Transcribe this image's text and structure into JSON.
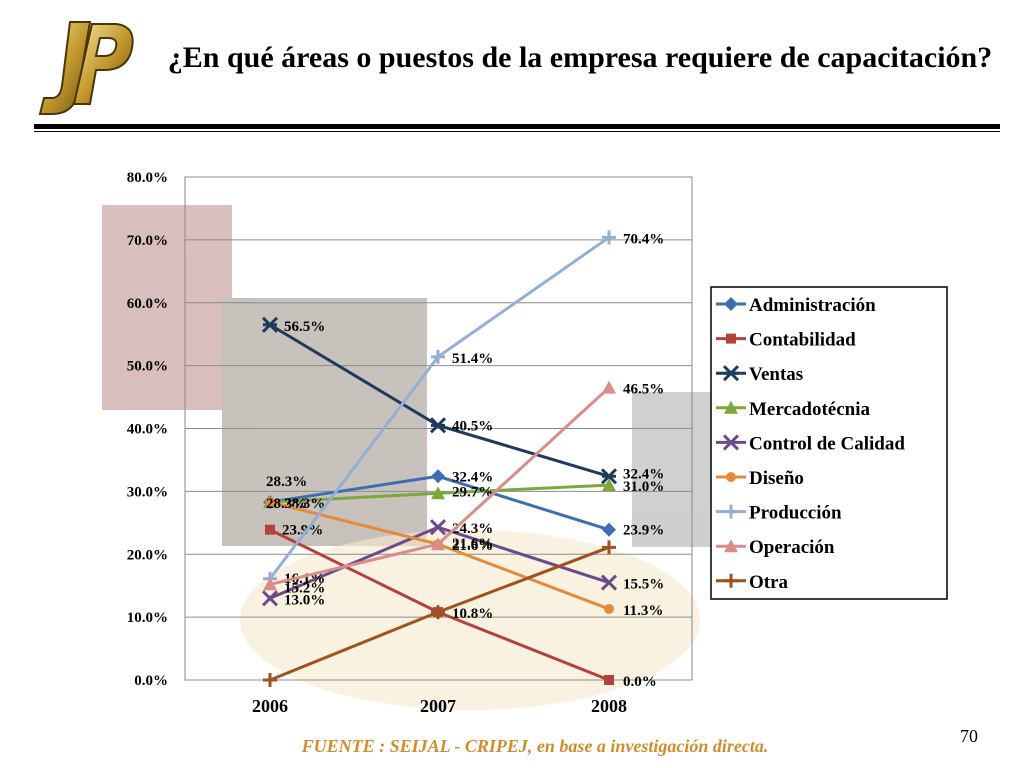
{
  "slide": {
    "title": "¿En qué áreas o puestos de la empresa requiere de capacitación?",
    "source": "FUENTE : SEIJAL - CRIPEJ, en base a investigación directa.",
    "page_number": "70"
  },
  "colors": {
    "source_text": "#d08d2b",
    "logo_gold": "#c69a2e"
  },
  "chart_data": {
    "type": "line",
    "title": "",
    "xlabel": "",
    "ylabel": "",
    "x": [
      "2006",
      "2007",
      "2008"
    ],
    "ylim": [
      0,
      80
    ],
    "yticks": [
      "0.0%",
      "10.0%",
      "20.0%",
      "30.0%",
      "40.0%",
      "50.0%",
      "60.0%",
      "70.0%",
      "80.0%"
    ],
    "grid": true,
    "legend_position": "right",
    "series": [
      {
        "name": "Administración",
        "values": [
          28.3,
          32.4,
          23.9
        ],
        "labels": [
          "28.3%",
          "32.4%",
          "23.9%"
        ],
        "color": "#3d6eb0",
        "marker": "diamond"
      },
      {
        "name": "Contabilidad",
        "values": [
          23.9,
          10.8,
          0.0
        ],
        "labels": [
          "23.9%",
          "10.8%",
          "0.0%"
        ],
        "color": "#b5413f",
        "marker": "square"
      },
      {
        "name": "Ventas",
        "values": [
          56.5,
          40.5,
          32.4
        ],
        "labels": [
          "56.5%",
          "40.5%",
          "32.4%"
        ],
        "color": "#1f3a5f",
        "marker": "asterisk"
      },
      {
        "name": "Mercadotécnia",
        "values": [
          28.3,
          29.7,
          31.0
        ],
        "labels": [
          "28.3%",
          "29.7%",
          "31.0%"
        ],
        "color": "#7fa63b",
        "marker": "triangle"
      },
      {
        "name": "Control de Calidad",
        "values": [
          13.0,
          24.3,
          15.5
        ],
        "labels": [
          "13.0%",
          "24.3%",
          "15.5%"
        ],
        "color": "#6b4a8c",
        "marker": "x"
      },
      {
        "name": "Diseño",
        "values": [
          28.3,
          21.6,
          11.3
        ],
        "labels": [
          "28.3%",
          "21.6%",
          "11.3%"
        ],
        "color": "#e38b3b",
        "marker": "circle"
      },
      {
        "name": "Producción",
        "values": [
          16.1,
          51.4,
          70.4
        ],
        "labels": [
          "16.1%",
          "51.4%",
          "70.4%"
        ],
        "color": "#94aed6",
        "marker": "plus"
      },
      {
        "name": "Operación",
        "values": [
          15.2,
          21.6,
          46.5
        ],
        "labels": [
          "15.2%",
          "21.6%",
          "46.5%"
        ],
        "color": "#d98c8a",
        "marker": "triangle"
      },
      {
        "name": "Otra",
        "values": [
          0.0,
          10.8,
          21.1
        ],
        "labels": [
          "",
          "",
          ""
        ],
        "color": "#a0521d",
        "marker": "plus"
      }
    ]
  }
}
